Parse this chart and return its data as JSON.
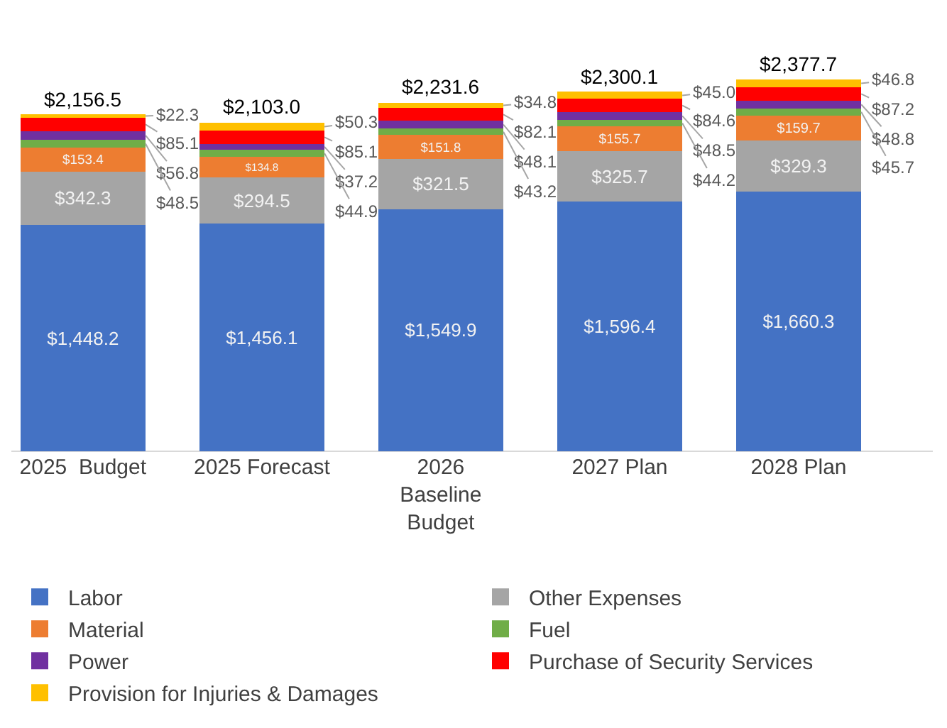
{
  "chart_data": {
    "type": "bar",
    "stacked": true,
    "tick_labels": "x",
    "grid": false,
    "legend": "bottom",
    "categories": [
      "2025  Budget",
      "2025 Forecast",
      "2026 Baseline Budget",
      "2027 Plan",
      "2028 Plan"
    ],
    "series": [
      {
        "name": "Labor",
        "color": "#4472c4",
        "values": [
          1448.2,
          1456.1,
          1549.9,
          1596.4,
          1660.3
        ],
        "value_labels": [
          "$1,448.2",
          "$1,456.1",
          "$1,549.9",
          "$1,596.4",
          "$1,660.3"
        ]
      },
      {
        "name": "Other Expenses",
        "color": "#a5a5a5",
        "values": [
          342.3,
          294.5,
          321.5,
          325.7,
          329.3
        ],
        "value_labels": [
          "$342.3",
          "$294.5",
          "$321.5",
          "$325.7",
          "$329.3"
        ]
      },
      {
        "name": "Material",
        "color": "#ed7d31",
        "values": [
          153.4,
          134.8,
          151.8,
          155.7,
          159.7
        ],
        "value_labels": [
          "$153.4",
          "$134.8",
          "$151.8",
          "$155.7",
          "$159.7"
        ]
      },
      {
        "name": "Fuel",
        "color": "#70ad47",
        "values": [
          48.5,
          44.9,
          43.2,
          44.2,
          45.7
        ],
        "value_labels": [
          "$48.5",
          "$44.9",
          "$43.2",
          "$44.2",
          "$45.7"
        ]
      },
      {
        "name": "Power",
        "color": "#7030a0",
        "values": [
          56.8,
          37.2,
          48.1,
          48.5,
          48.8
        ],
        "value_labels": [
          "$56.8",
          "$37.2",
          "$48.1",
          "$48.5",
          "$48.8"
        ]
      },
      {
        "name": "Purchase of Security Services",
        "color": "#ff0000",
        "values": [
          85.1,
          85.1,
          82.1,
          84.6,
          87.2
        ],
        "value_labels": [
          "$85.1",
          "$85.1",
          "$82.1",
          "$84.6",
          "$87.2"
        ]
      },
      {
        "name": "Provision for Injuries & Damages",
        "color": "#ffc000",
        "values": [
          22.3,
          50.3,
          34.8,
          45.0,
          46.8
        ],
        "value_labels": [
          "$22.3",
          "$50.3",
          "$34.8",
          "$45.0",
          "$46.8"
        ]
      }
    ],
    "totals": [
      "$2,156.5",
      "$2,103.0",
      "$2,231.6",
      "$2,300.1",
      "$2,377.7"
    ]
  }
}
